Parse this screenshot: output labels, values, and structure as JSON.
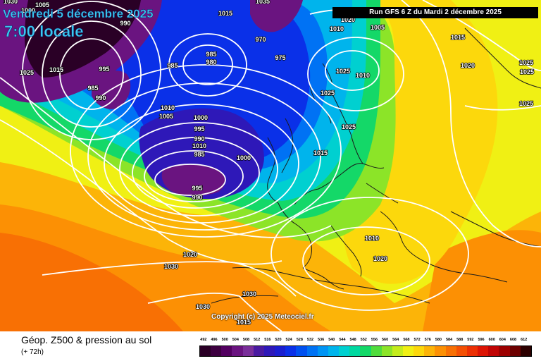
{
  "header": {
    "valid_day": "Vendredi 5 décembre 2025",
    "valid_time": "7:00 locale",
    "run_info": "Run GFS 6 Z du Mardi 2 décembre 2025"
  },
  "copyright": "Copyright (c) 2025 Meteociel.fr",
  "footer": {
    "title": "Géop. Z500 & pression au sol",
    "subtitle": "(+ 72h)"
  },
  "colorbar": {
    "labels": [
      "492",
      "496",
      "500",
      "504",
      "508",
      "512",
      "516",
      "520",
      "524",
      "528",
      "532",
      "536",
      "540",
      "544",
      "548",
      "552",
      "556",
      "560",
      "564",
      "568",
      "572",
      "576",
      "580",
      "584",
      "588",
      "592",
      "596",
      "600",
      "604",
      "608",
      "612"
    ],
    "colors": [
      "#2a0026",
      "#3d0040",
      "#520060",
      "#6a1480",
      "#7a2f9a",
      "#4a1aa0",
      "#2e18b8",
      "#1a1ed0",
      "#0a30e8",
      "#0050f0",
      "#0072f4",
      "#0094f4",
      "#00b4ec",
      "#00d0d0",
      "#00d8a0",
      "#14d868",
      "#50dc3c",
      "#8ce428",
      "#c4ec1c",
      "#f0f014",
      "#fcd80c",
      "#fcb408",
      "#fc9004",
      "#f87004",
      "#f45004",
      "#ec3004",
      "#dc1404",
      "#c00404",
      "#9c0000",
      "#6c0000",
      "#2c0000"
    ]
  },
  "palette": {
    "violet": "#6a1480",
    "purple": "#2a0026",
    "deep_blue": "#2e18b8",
    "blue": "#0a30e8",
    "mid_blue": "#0072f4",
    "cyan": "#00b4ec",
    "aqua": "#00d0d0",
    "green": "#14d868",
    "lime": "#8ce428",
    "yellow": "#f0f014",
    "gold": "#fcd80c",
    "orange": "#fcb408",
    "dark_orange": "#fc9004",
    "red_orange": "#f87004",
    "coast": "#1a1a1a",
    "isobar": "#ffffff"
  },
  "isobar_labels": [
    "1005",
    "1000",
    "1015",
    "990",
    "995",
    "985",
    "990",
    "1025",
    "1015",
    "1000",
    "995",
    "985",
    "990",
    "1010",
    "1010",
    "1005",
    "1000",
    "995",
    "990",
    "985",
    "980",
    "985",
    "970",
    "975",
    "1035",
    "1030",
    "1010",
    "1025",
    "1025",
    "1025",
    "1015",
    "1010",
    "1020",
    "1020",
    "1030",
    "1030",
    "1030",
    "1015",
    "1020",
    "1010",
    "1005",
    "1015",
    "1020",
    "1025",
    "1025",
    "1025"
  ]
}
